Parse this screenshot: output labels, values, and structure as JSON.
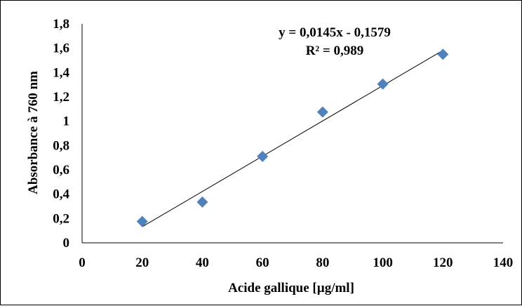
{
  "chart_data": {
    "type": "scatter",
    "xlabel": "Acide gallique [µg/ml]",
    "ylabel": "Absorbance à 760 nm",
    "xlim": [
      0,
      140
    ],
    "ylim": [
      0,
      1.8
    ],
    "x_ticks": [
      0,
      20,
      40,
      60,
      80,
      100,
      120,
      140
    ],
    "y_ticks": [
      0,
      0.2,
      0.4,
      0.6,
      0.8,
      1,
      1.2,
      1.4,
      1.6,
      1.8
    ],
    "x_tick_labels": [
      "0",
      "20",
      "40",
      "60",
      "80",
      "100",
      "120",
      "140"
    ],
    "y_tick_labels": [
      "0",
      "0,2",
      "0,4",
      "0,6",
      "0,8",
      "1",
      "1,2",
      "1,4",
      "1,6",
      "1,8"
    ],
    "grid": false,
    "legend": "none",
    "series": [
      {
        "x": [
          20,
          40,
          60,
          80,
          100,
          120
        ],
        "y": [
          0.175,
          0.335,
          0.71,
          1.075,
          1.305,
          1.55
        ],
        "color": "#4F81BD",
        "marker": "diamond"
      }
    ],
    "trendline": {
      "type": "linear",
      "slope": 0.0145,
      "intercept": -0.1579,
      "x_range": [
        20,
        120
      ],
      "color": "#000000"
    },
    "annotations": {
      "equation": "y = 0,0145x - 0,1579",
      "r_squared": "R² = 0,989"
    }
  }
}
